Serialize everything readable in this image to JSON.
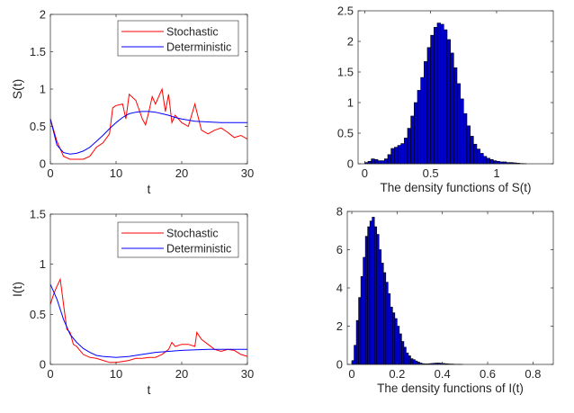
{
  "chart_data": [
    {
      "type": "line",
      "xlabel": "t",
      "ylabel": "S(t)",
      "xlim": [
        0,
        30
      ],
      "ylim": [
        0,
        2
      ],
      "xticks": [
        "0",
        "10",
        "20",
        "30"
      ],
      "yticks": [
        "0",
        "0.5",
        "1",
        "1.5",
        "2"
      ],
      "xtick_values": [
        0,
        10,
        20,
        30
      ],
      "ytick_values": [
        0,
        0.5,
        1,
        1.5,
        2
      ],
      "legend_position": "top-right",
      "grid": false,
      "series": [
        {
          "name": "Stochastic",
          "color": "#ff0000",
          "x": [
            0,
            1,
            2,
            3,
            4,
            5,
            6,
            7,
            8,
            9,
            9.5,
            10,
            11,
            11.5,
            12,
            13,
            14,
            14.5,
            15,
            15.5,
            16,
            17,
            17.5,
            18,
            18.5,
            19,
            20,
            21,
            22,
            23,
            24,
            25,
            26,
            27,
            28,
            29,
            30
          ],
          "y": [
            0.6,
            0.3,
            0.1,
            0.06,
            0.06,
            0.06,
            0.1,
            0.22,
            0.28,
            0.4,
            0.75,
            0.78,
            0.8,
            0.6,
            0.93,
            0.85,
            0.6,
            0.52,
            0.7,
            0.9,
            0.8,
            1.0,
            0.7,
            0.93,
            0.55,
            0.65,
            0.55,
            0.5,
            0.8,
            0.45,
            0.4,
            0.45,
            0.48,
            0.42,
            0.35,
            0.38,
            0.33
          ]
        },
        {
          "name": "Deterministic",
          "color": "#0000ff",
          "x": [
            0,
            1,
            2,
            3,
            4,
            5,
            6,
            7,
            8,
            9,
            10,
            11,
            12,
            13,
            14,
            15,
            16,
            17,
            18,
            19,
            20,
            22,
            24,
            26,
            28,
            30
          ],
          "y": [
            0.6,
            0.25,
            0.15,
            0.13,
            0.14,
            0.17,
            0.22,
            0.3,
            0.38,
            0.47,
            0.55,
            0.62,
            0.67,
            0.69,
            0.7,
            0.7,
            0.69,
            0.67,
            0.65,
            0.62,
            0.6,
            0.57,
            0.56,
            0.55,
            0.55,
            0.55
          ]
        }
      ]
    },
    {
      "type": "bar",
      "xlabel": "The density functions of S(t)",
      "ylabel": "",
      "xlim": [
        -0.05,
        1.43
      ],
      "ylim": [
        0,
        2.5
      ],
      "xticks": [
        "0",
        "0.5",
        "1"
      ],
      "yticks": [
        "0",
        "0.5",
        "1",
        "1.5",
        "2",
        "2.5"
      ],
      "xtick_values": [
        0,
        0.5,
        1
      ],
      "ytick_values": [
        0,
        0.5,
        1,
        1.5,
        2,
        2.5
      ],
      "bar_color": "#0000cc",
      "edge_color": "#000000",
      "bin_start": 0,
      "bin_width": 0.025,
      "values": [
        0.02,
        0.04,
        0.08,
        0.07,
        0.05,
        0.05,
        0.08,
        0.15,
        0.25,
        0.27,
        0.3,
        0.33,
        0.42,
        0.58,
        0.78,
        1.0,
        1.2,
        1.41,
        1.67,
        1.9,
        2.1,
        2.23,
        2.3,
        2.28,
        2.19,
        2.03,
        1.81,
        1.57,
        1.31,
        1.06,
        0.82,
        0.62,
        0.45,
        0.32,
        0.24,
        0.17,
        0.12,
        0.09,
        0.07,
        0.05,
        0.04,
        0.03,
        0.03,
        0.02,
        0.02,
        0.015,
        0.01,
        0.005,
        0.003,
        0,
        0,
        0,
        0,
        0,
        0,
        0
      ]
    },
    {
      "type": "line",
      "xlabel": "t",
      "ylabel": "I(t)",
      "xlim": [
        0,
        30
      ],
      "ylim": [
        0,
        1.5
      ],
      "xticks": [
        "0",
        "10",
        "20",
        "30"
      ],
      "yticks": [
        "0",
        "0.5",
        "1",
        "1.5"
      ],
      "xtick_values": [
        0,
        10,
        20,
        30
      ],
      "ytick_values": [
        0,
        0.5,
        1,
        1.5
      ],
      "legend_position": "top-right",
      "grid": false,
      "series": [
        {
          "name": "Stochastic",
          "color": "#ff0000",
          "x": [
            0,
            0.5,
            1,
            1.5,
            2,
            2.5,
            3,
            3.5,
            4,
            5,
            6,
            7,
            8,
            9,
            10,
            11,
            12,
            13,
            14,
            15,
            16,
            17,
            18,
            18.5,
            19,
            20,
            21,
            22,
            22.3,
            23,
            24,
            25,
            26,
            27,
            28,
            29,
            30
          ],
          "y": [
            0.6,
            0.7,
            0.78,
            0.85,
            0.6,
            0.35,
            0.32,
            0.2,
            0.18,
            0.1,
            0.07,
            0.06,
            0.04,
            0.02,
            0.02,
            0.03,
            0.04,
            0.06,
            0.06,
            0.07,
            0.07,
            0.1,
            0.15,
            0.22,
            0.18,
            0.2,
            0.2,
            0.18,
            0.32,
            0.25,
            0.2,
            0.15,
            0.13,
            0.15,
            0.14,
            0.1,
            0.08
          ]
        },
        {
          "name": "Deterministic",
          "color": "#0000ff",
          "x": [
            0,
            1,
            2,
            3,
            4,
            5,
            6,
            7,
            8,
            10,
            12,
            14,
            16,
            18,
            20,
            24,
            30
          ],
          "y": [
            0.8,
            0.65,
            0.45,
            0.3,
            0.22,
            0.16,
            0.12,
            0.09,
            0.08,
            0.07,
            0.08,
            0.1,
            0.12,
            0.13,
            0.14,
            0.15,
            0.15
          ]
        }
      ]
    },
    {
      "type": "bar",
      "xlabel": "The density functions of I(t)",
      "ylabel": "",
      "xlim": [
        -0.02,
        0.89
      ],
      "ylim": [
        0,
        8
      ],
      "xticks": [
        "0",
        "0.2",
        "0.4",
        "0.6",
        "0.8"
      ],
      "yticks": [
        "0",
        "2",
        "4",
        "6",
        "8"
      ],
      "xtick_values": [
        0,
        0.2,
        0.4,
        0.6,
        0.8
      ],
      "ytick_values": [
        0,
        2,
        4,
        6,
        8
      ],
      "bar_color": "#0000cc",
      "edge_color": "#000000",
      "bin_start": 0,
      "bin_width": 0.01,
      "values": [
        0.2,
        1.0,
        2.3,
        3.5,
        4.6,
        5.6,
        6.7,
        7.2,
        7.5,
        7.7,
        7.2,
        6.8,
        6.0,
        5.3,
        4.8,
        4.3,
        3.7,
        3.0,
        2.7,
        2.4,
        2.0,
        1.6,
        1.2,
        0.9,
        0.6,
        0.45,
        0.3,
        0.25,
        0.18,
        0.12,
        0.07,
        0.04,
        0.03,
        0.03,
        0.04,
        0.05,
        0.06,
        0.07,
        0.07,
        0.06,
        0.05,
        0.04,
        0.03,
        0.02,
        0.02,
        0.01,
        0.01,
        0.01,
        0.005
      ]
    }
  ]
}
